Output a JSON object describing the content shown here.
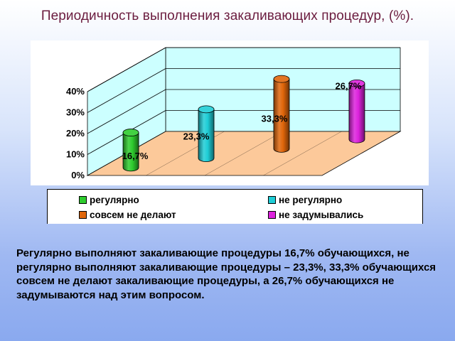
{
  "title": "Периодичность выполнения закаливающих процедур, (%).",
  "chart_data": {
    "type": "bar",
    "title": "",
    "xlabel": "",
    "ylabel": "",
    "ylim": [
      0,
      40
    ],
    "ytick_labels": [
      "0%",
      "10%",
      "20%",
      "30%",
      "40%"
    ],
    "grid": true,
    "legend_position": "bottom",
    "series": [
      {
        "name": "регулярно",
        "value": 16.7,
        "label": "16,7%",
        "color": "#2ecc2e"
      },
      {
        "name": "не регулярно",
        "value": 23.3,
        "label": "23,3%",
        "color": "#1ecdd6"
      },
      {
        "name": "совсем не делают",
        "value": 33.3,
        "label": "33,3%",
        "color": "#e0660a"
      },
      {
        "name": "не задумывались",
        "value": 26.7,
        "label": "26,7%",
        "color": "#dd22dd"
      }
    ],
    "colors": {
      "back_wall": "#ccffff",
      "floor": "#fcc99a"
    }
  },
  "summary": "Регулярно выполняют закаливающие процедуры 16,7% обучающихся, не регулярно выполняют закаливающие процедуры – 23,3%, 33,3% обучающихся совсем не делают закаливающие процедуры, а 26,7% обучающихся не задумываются над этим вопросом."
}
